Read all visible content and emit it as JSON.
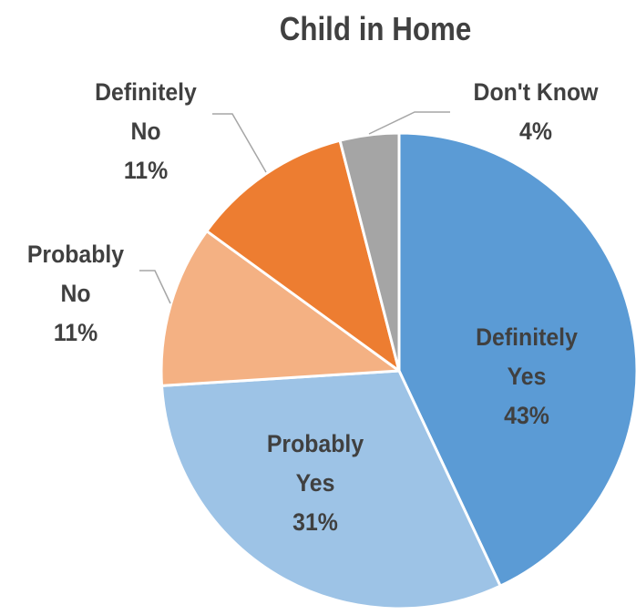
{
  "chart_data": {
    "type": "pie",
    "title": "Child in Home",
    "slices": [
      {
        "label_lines": [
          "Definitely",
          "Yes"
        ],
        "pct_label": "43%",
        "value": 43,
        "color": "#5b9bd5",
        "label_color": "#404040",
        "label_position": "inside"
      },
      {
        "label_lines": [
          "Probably",
          "Yes"
        ],
        "pct_label": "31%",
        "value": 31,
        "color": "#9dc3e6",
        "label_color": "#404040",
        "label_position": "inside"
      },
      {
        "label_lines": [
          "Probably",
          "No"
        ],
        "pct_label": "11%",
        "value": 11,
        "color": "#f4b183",
        "label_color": "#404040",
        "label_position": "outside"
      },
      {
        "label_lines": [
          "Definitely",
          "No"
        ],
        "pct_label": "11%",
        "value": 11,
        "color": "#ed7d31",
        "label_color": "#404040",
        "label_position": "outside"
      },
      {
        "label_lines": [
          "Don't Know"
        ],
        "pct_label": "4%",
        "value": 4,
        "color": "#a5a5a5",
        "label_color": "#404040",
        "label_position": "outside"
      }
    ],
    "start_angle": "12 o'clock",
    "direction": "clockwise",
    "legend": "none",
    "leader_line_color": "#a6a6a6",
    "slice_border_color": "#ffffff"
  }
}
